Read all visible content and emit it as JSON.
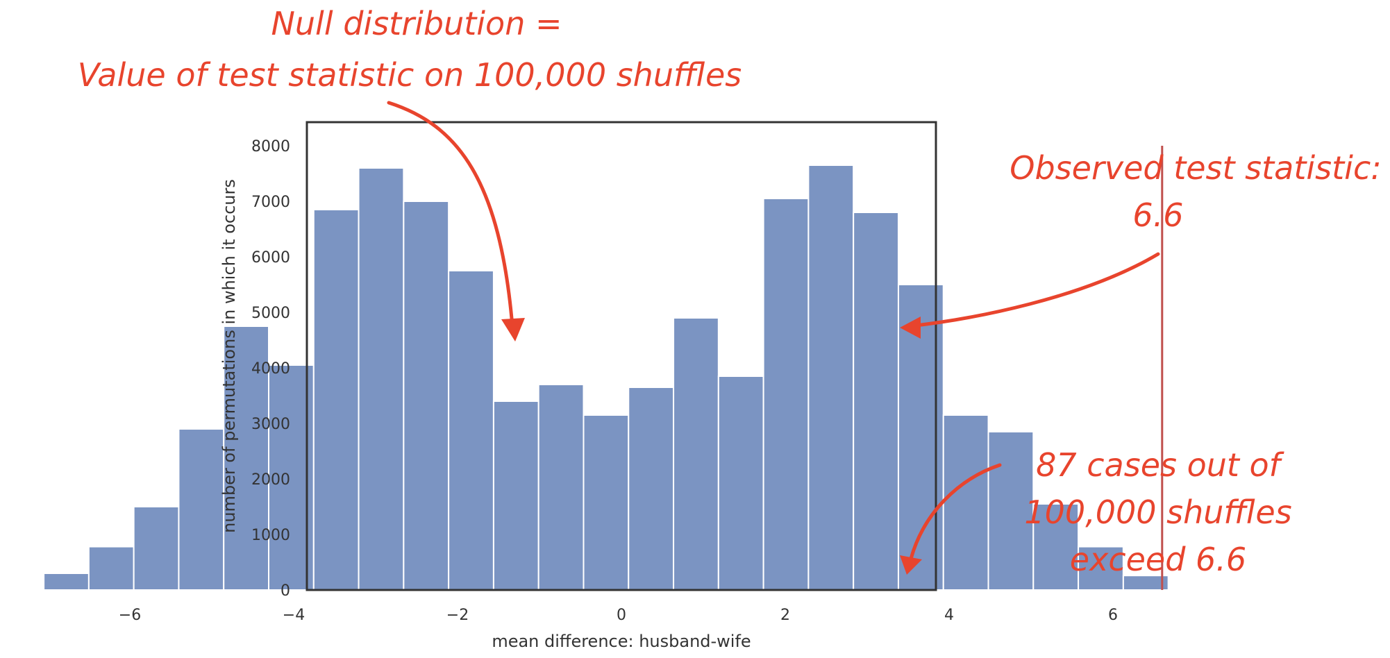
{
  "chart_data": {
    "type": "bar",
    "xlabel": "mean difference: husband-wife",
    "ylabel": "number of permutations in which it occurs",
    "xlim": [
      -7.9,
      7.2
    ],
    "ylim": [
      0,
      8400
    ],
    "xticks": [
      -6,
      -4,
      -2,
      0,
      2,
      4,
      6
    ],
    "xtick_labels": [
      "−6",
      "−4",
      "−2",
      "0",
      "2",
      "4",
      "6"
    ],
    "yticks": [
      0,
      1000,
      2000,
      3000,
      4000,
      5000,
      6000,
      7000,
      8000
    ],
    "ytick_labels": [
      "0",
      "1000",
      "2000",
      "3000",
      "4000",
      "5000",
      "6000",
      "7000",
      "8000"
    ],
    "bin_start": -7.05,
    "bin_width": 0.549,
    "values": [
      300,
      780,
      1500,
      2900,
      4750,
      4050,
      6850,
      7600,
      7000,
      5750,
      3400,
      3700,
      3150,
      3650,
      4900,
      3850,
      7050,
      7650,
      6800,
      5500,
      3150,
      2850,
      1550,
      780,
      260
    ],
    "bar_color": "#7b94c2",
    "observed_line": {
      "x": 6.6,
      "color": "#c0504d"
    },
    "grid": false,
    "annotations": {
      "null_title": "Null distribution =",
      "null_desc": "Value of test statistic on 100,000 shuffles",
      "observed_title": "Observed test statistic:",
      "observed_value": "6.6",
      "tail_line1": "87 cases out of",
      "tail_line2": "100,000 shuffles",
      "tail_line3": "exceed 6.6",
      "color": "#e8442d"
    }
  }
}
